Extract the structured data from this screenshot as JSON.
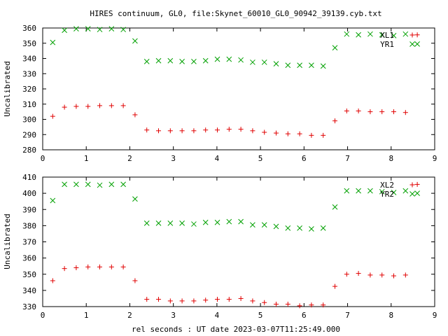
{
  "page": {
    "title": "HIRES continuum, GL0, file:Skynet_60010_GL0_90942_39139.cyb.txt",
    "xlabel": "rel seconds : UT date 2023-03-07T11:25:49.000"
  },
  "colors": {
    "red": "#e00000",
    "green": "#00a000",
    "axis": "#000000"
  },
  "chart_data": [
    {
      "type": "scatter",
      "ylabel": "Uncalibrated",
      "xlim": [
        0,
        9
      ],
      "ylim": [
        280,
        360
      ],
      "xticks": [
        0,
        1,
        2,
        3,
        4,
        5,
        6,
        7,
        8,
        9
      ],
      "yticks": [
        280,
        290,
        300,
        310,
        320,
        330,
        340,
        350,
        360
      ],
      "legend_position": "top-right",
      "series": [
        {
          "name": "XL1",
          "marker": "+",
          "color": "#e00000",
          "x": [
            0.23,
            0.5,
            0.77,
            1.04,
            1.31,
            1.58,
            1.85,
            2.12,
            2.39,
            2.66,
            2.93,
            3.2,
            3.47,
            3.74,
            4.01,
            4.28,
            4.55,
            4.82,
            5.09,
            5.36,
            5.63,
            5.9,
            6.17,
            6.44,
            6.71,
            6.98,
            7.25,
            7.52,
            7.79,
            8.06,
            8.33,
            8.6
          ],
          "y": [
            302,
            308,
            308.5,
            308.5,
            309,
            309,
            309,
            303,
            293,
            292.5,
            292.5,
            292.5,
            292.5,
            293,
            293,
            293.5,
            293.5,
            292.5,
            291.5,
            291,
            290.5,
            290.5,
            289.5,
            289.5,
            299,
            305.5,
            305.5,
            305,
            305,
            305,
            304.5,
            355.5
          ]
        },
        {
          "name": "YR1",
          "marker": "x",
          "color": "#00a000",
          "x": [
            0.23,
            0.5,
            0.77,
            1.04,
            1.31,
            1.58,
            1.85,
            2.12,
            2.39,
            2.66,
            2.93,
            3.2,
            3.47,
            3.74,
            4.01,
            4.28,
            4.55,
            4.82,
            5.09,
            5.36,
            5.63,
            5.9,
            6.17,
            6.44,
            6.71,
            6.98,
            7.25,
            7.52,
            7.79,
            8.06,
            8.33,
            8.6
          ],
          "y": [
            350.5,
            358.5,
            359.5,
            359.5,
            359,
            359.5,
            359,
            351.5,
            338,
            338.5,
            338.5,
            338,
            338,
            338.5,
            339.5,
            339.5,
            339,
            337.5,
            337.5,
            336.5,
            335.5,
            335.5,
            335.5,
            335,
            347,
            356,
            355.5,
            356,
            355.5,
            355,
            356,
            349.5
          ]
        }
      ]
    },
    {
      "type": "scatter",
      "ylabel": "Uncalibrated",
      "xlim": [
        0,
        9
      ],
      "ylim": [
        330,
        410
      ],
      "xticks": [
        0,
        1,
        2,
        3,
        4,
        5,
        6,
        7,
        8,
        9
      ],
      "yticks": [
        330,
        340,
        350,
        360,
        370,
        380,
        390,
        400,
        410
      ],
      "legend_position": "top-right",
      "series": [
        {
          "name": "XL2",
          "marker": "+",
          "color": "#e00000",
          "x": [
            0.23,
            0.5,
            0.77,
            1.04,
            1.31,
            1.58,
            1.85,
            2.12,
            2.39,
            2.66,
            2.93,
            3.2,
            3.47,
            3.74,
            4.01,
            4.28,
            4.55,
            4.82,
            5.09,
            5.36,
            5.63,
            5.9,
            6.17,
            6.44,
            6.71,
            6.98,
            7.25,
            7.52,
            7.79,
            8.06,
            8.33,
            8.6
          ],
          "y": [
            346,
            353.5,
            354,
            354.5,
            354.5,
            354.5,
            354.5,
            346,
            334.5,
            334.5,
            333.5,
            333.5,
            333.5,
            334,
            334.5,
            334.5,
            335,
            333.5,
            332.5,
            331.5,
            331.5,
            330.5,
            331,
            331,
            342.5,
            350,
            350.5,
            349.5,
            349.5,
            349,
            349.5,
            405.5
          ]
        },
        {
          "name": "YR2",
          "marker": "x",
          "color": "#00a000",
          "x": [
            0.23,
            0.5,
            0.77,
            1.04,
            1.31,
            1.58,
            1.85,
            2.12,
            2.39,
            2.66,
            2.93,
            3.2,
            3.47,
            3.74,
            4.01,
            4.28,
            4.55,
            4.82,
            5.09,
            5.36,
            5.63,
            5.9,
            6.17,
            6.44,
            6.71,
            6.98,
            7.25,
            7.52,
            7.79,
            8.06,
            8.33,
            8.6
          ],
          "y": [
            395.5,
            405.5,
            405.5,
            405.5,
            405,
            405.5,
            405.5,
            396.5,
            381.5,
            381.5,
            381.5,
            381.5,
            381,
            382,
            382,
            382.5,
            382.5,
            380.5,
            380.5,
            379.5,
            378.5,
            378.5,
            378,
            378.5,
            391.5,
            401.5,
            401.5,
            401.5,
            401,
            400.5,
            401.5,
            400
          ]
        }
      ]
    }
  ]
}
